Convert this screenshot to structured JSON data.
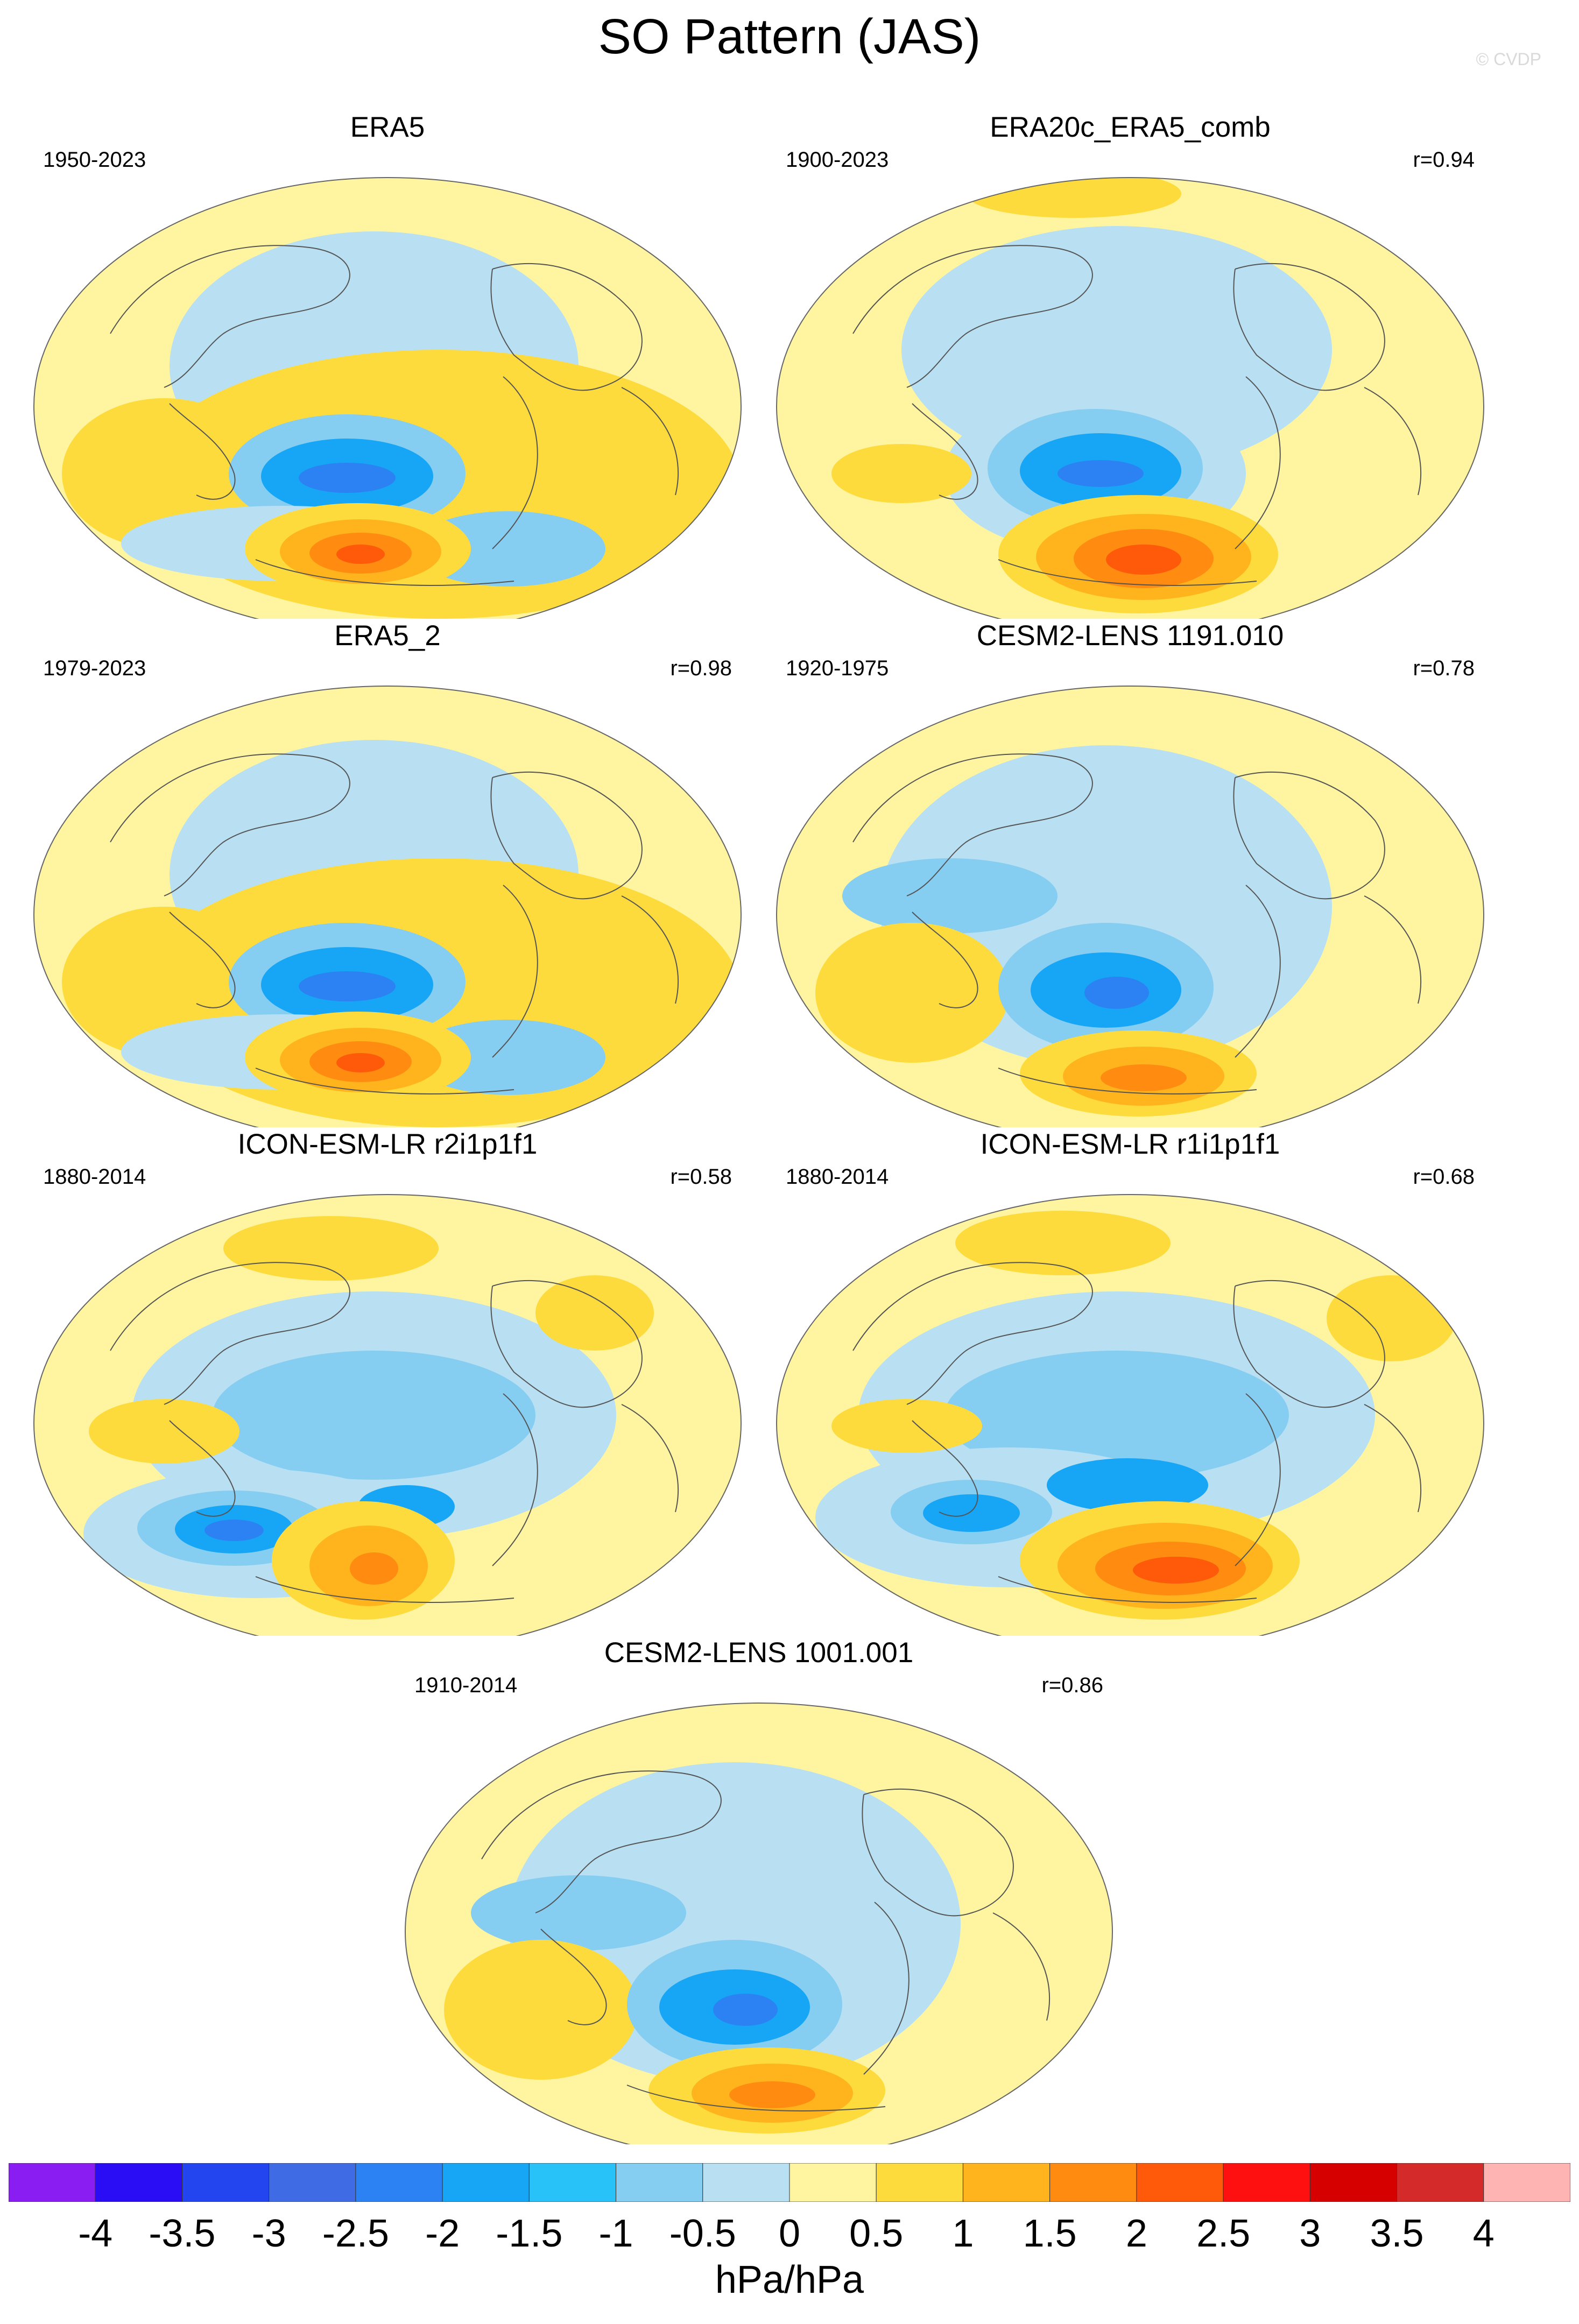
{
  "title": "SO Pattern (JAS)",
  "credit": "© CVDP",
  "panels": [
    {
      "title": "ERA5",
      "period": "1950-2023",
      "corr": "",
      "variant": 0
    },
    {
      "title": "ERA20c_ERA5_comb",
      "period": "1900-2023",
      "corr": "r=0.94",
      "variant": 1
    },
    {
      "title": "ERA5_2",
      "period": "1979-2023",
      "corr": "r=0.98",
      "variant": 0
    },
    {
      "title": "CESM2-LENS 1191.010",
      "period": "1920-1975",
      "corr": "r=0.78",
      "variant": 2
    },
    {
      "title": "ICON-ESM-LR r2i1p1f1",
      "period": "1880-2014",
      "corr": "r=0.58",
      "variant": 3
    },
    {
      "title": "ICON-ESM-LR r1i1p1f1",
      "period": "1880-2014",
      "corr": "r=0.68",
      "variant": 4
    },
    {
      "title": "CESM2-LENS 1001.001",
      "period": "1910-2014",
      "corr": "r=0.86",
      "variant": 2
    }
  ],
  "colorbar": {
    "tick_labels": [
      "-4",
      "-3.5",
      "-3",
      "-2.5",
      "-2",
      "-1.5",
      "-1",
      "-0.5",
      "0",
      "0.5",
      "1",
      "1.5",
      "2",
      "2.5",
      "3",
      "3.5",
      "4"
    ],
    "colors": [
      "#8a1ef2",
      "#2a0cf5",
      "#2245f0",
      "#3f6be4",
      "#2c82f2",
      "#16a6f5",
      "#28c2f8",
      "#86cdf2",
      "#b8e0f2",
      "#fff5a0",
      "#fedb3c",
      "#ffb41e",
      "#ff8c10",
      "#ff5a0a",
      "#ff1010",
      "#d60000",
      "#d42a2a",
      "#ffb4b4"
    ],
    "units": "hPa/hPa"
  },
  "map_colors": {
    "ocean_land_base": "#fff5a0",
    "neg_weak": "#b8e0f2",
    "neg_mid": "#86cdf2",
    "neg_strong": "#28c2f8",
    "neg_stronger": "#16a6f5",
    "neg_core": "#2c82f2",
    "pos_weak": "#fedb3c",
    "pos_mid": "#ffb41e",
    "pos_strong": "#ff8c10",
    "pos_core": "#ff5a0a",
    "coast": "#555555"
  }
}
